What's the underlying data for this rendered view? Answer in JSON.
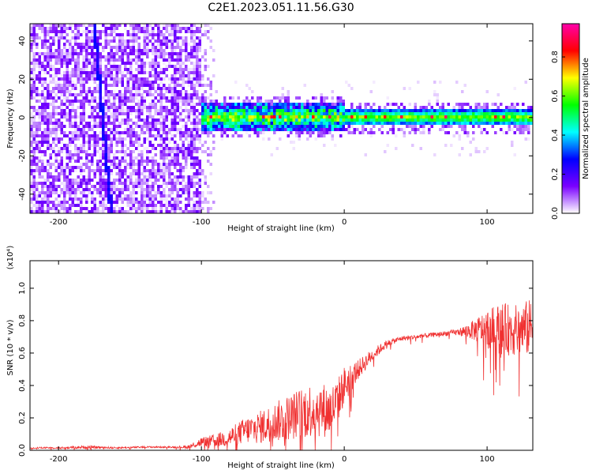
{
  "title": "C2E1.2023.051.11.56.G30",
  "colors": {
    "snr_line": "#f03030",
    "colormap": [
      "#ffffff",
      "#7a00ff",
      "#0000ff",
      "#00ffff",
      "#00ff00",
      "#ffff00",
      "#ff0000",
      "#ff00aa"
    ]
  },
  "chart_data": [
    {
      "type": "heatmap",
      "title": "C2E1.2023.051.11.56.G30",
      "xlabel": "Height of straight line (km)",
      "ylabel": "Frequency (Hz)",
      "xlim": [
        -220,
        132
      ],
      "ylim": [
        -50,
        49
      ],
      "xticks": [
        -200,
        -100,
        0,
        100
      ],
      "yticks": [
        -40,
        -20,
        0,
        20,
        40
      ],
      "colorbar": {
        "label": "Normalized spectral amplitude",
        "range": [
          0.0,
          0.97
        ],
        "ticks": [
          0.0,
          0.2,
          0.4,
          0.6,
          0.8
        ]
      },
      "features": {
        "broadband_noise_region_km": [
          -220,
          -100
        ],
        "narrowband_line_freq_hz": 0,
        "slanted_track": {
          "x_km": [
            -175,
            -163
          ],
          "freq_hz": [
            49,
            -50
          ]
        }
      }
    },
    {
      "type": "line",
      "xlabel": "Height of straight line (km)",
      "ylabel": "SNR (10 * v/v)",
      "y_multiplier": "(x10⁴)",
      "xlim": [
        -220,
        132
      ],
      "ylim": [
        0,
        1.17
      ],
      "xticks": [
        -200,
        -100,
        0,
        100
      ],
      "yticks": [
        0.0,
        0.2,
        0.4,
        0.6,
        0.8,
        1.0
      ],
      "series": [
        {
          "x": [
            -220,
            -200,
            -180,
            -160,
            -140,
            -120,
            -110,
            -100,
            -90,
            -80,
            -70,
            -60,
            -50,
            -40,
            -30,
            -20,
            -10,
            -5,
            0,
            10,
            20,
            30,
            40,
            50,
            60,
            70,
            80,
            90,
            100,
            110,
            120,
            132
          ],
          "y": [
            0.015,
            0.015,
            0.02,
            0.015,
            0.02,
            0.02,
            0.02,
            0.05,
            0.06,
            0.08,
            0.12,
            0.14,
            0.17,
            0.2,
            0.23,
            0.26,
            0.24,
            0.3,
            0.4,
            0.5,
            0.59,
            0.66,
            0.69,
            0.7,
            0.71,
            0.72,
            0.73,
            0.74,
            0.75,
            0.75,
            0.74,
            0.76
          ],
          "noise": [
            0.005,
            0.005,
            0.01,
            0.005,
            0.005,
            0.005,
            0.01,
            0.03,
            0.04,
            0.06,
            0.08,
            0.1,
            0.12,
            0.14,
            0.16,
            0.18,
            0.16,
            0.14,
            0.12,
            0.06,
            0.04,
            0.02,
            0.015,
            0.015,
            0.015,
            0.015,
            0.02,
            0.06,
            0.12,
            0.16,
            0.16,
            0.18
          ]
        }
      ]
    }
  ]
}
